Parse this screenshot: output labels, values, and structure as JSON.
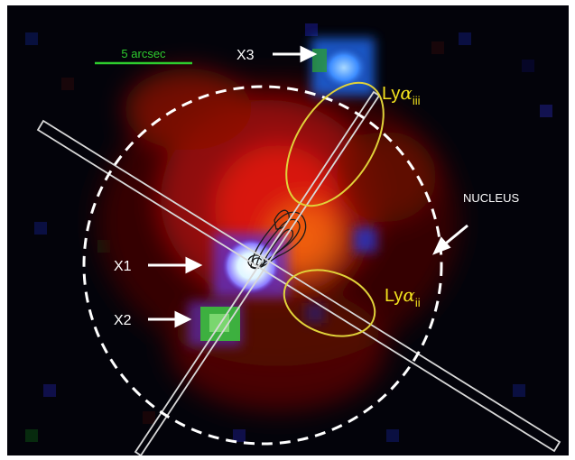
{
  "figure": {
    "scale_bar_label": "5 arcsec",
    "sources": [
      {
        "id": "x1",
        "label": "X1"
      },
      {
        "id": "x2",
        "label": "X2"
      },
      {
        "id": "x3",
        "label": "X3"
      }
    ],
    "nucleus_label": "NUCLEUS",
    "lya_regions": [
      {
        "id": "iii",
        "base": "Ly",
        "greek": "α",
        "subscript": "iii"
      },
      {
        "id": "ii",
        "base": "Ly",
        "greek": "α",
        "subscript": "ii"
      }
    ],
    "colors": {
      "background": "#03030a",
      "scale_bar": "#2ecc2e",
      "lya_ellipse": "#e0d23a",
      "lya_label": "#f2e21e",
      "annotation": "#ffffff"
    }
  }
}
